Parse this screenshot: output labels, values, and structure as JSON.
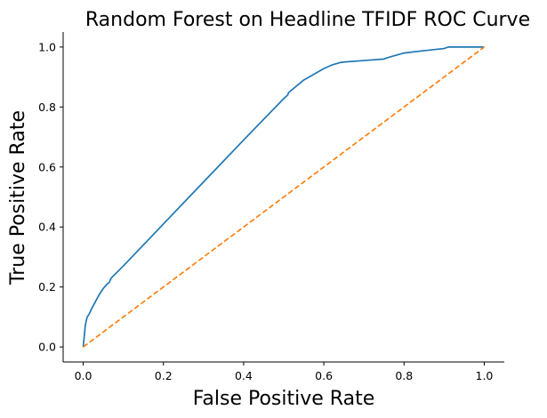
{
  "chart_data": {
    "type": "line",
    "title": "Random Forest on Headline TFIDF ROC Curve",
    "xlabel": "False Positive Rate",
    "ylabel": "True Positive Rate",
    "xlim": [
      -0.05,
      1.05
    ],
    "ylim": [
      -0.05,
      1.05
    ],
    "xticks": [
      0.0,
      0.2,
      0.4,
      0.6,
      0.8,
      1.0
    ],
    "yticks": [
      0.0,
      0.2,
      0.4,
      0.6,
      0.8,
      1.0
    ],
    "xtick_labels": [
      "0.0",
      "0.2",
      "0.4",
      "0.6",
      "0.8",
      "1.0"
    ],
    "ytick_labels": [
      "0.0",
      "0.2",
      "0.4",
      "0.6",
      "0.8",
      "1.0"
    ],
    "grid": false,
    "legend": "none",
    "series": [
      {
        "style": "solid",
        "color": "#1f77b4",
        "x": [
          0.0,
          0.003,
          0.005,
          0.008,
          0.01,
          0.015,
          0.02,
          0.03,
          0.04,
          0.05,
          0.06,
          0.065,
          0.067,
          0.07,
          0.1,
          0.2,
          0.3,
          0.4,
          0.5,
          0.51,
          0.512,
          0.55,
          0.6,
          0.62,
          0.64,
          0.65,
          0.7,
          0.75,
          0.76,
          0.8,
          0.85,
          0.9,
          0.91,
          1.0
        ],
        "y": [
          0.0,
          0.04,
          0.07,
          0.09,
          0.1,
          0.11,
          0.125,
          0.15,
          0.175,
          0.195,
          0.21,
          0.215,
          0.222,
          0.23,
          0.27,
          0.41,
          0.55,
          0.69,
          0.828,
          0.84,
          0.848,
          0.89,
          0.928,
          0.94,
          0.948,
          0.95,
          0.955,
          0.96,
          0.965,
          0.98,
          0.988,
          0.995,
          1.0,
          1.0
        ]
      },
      {
        "style": "dashed",
        "color": "#ff7f0e",
        "x": [
          0.0,
          1.0
        ],
        "y": [
          0.0,
          1.0
        ]
      }
    ]
  }
}
